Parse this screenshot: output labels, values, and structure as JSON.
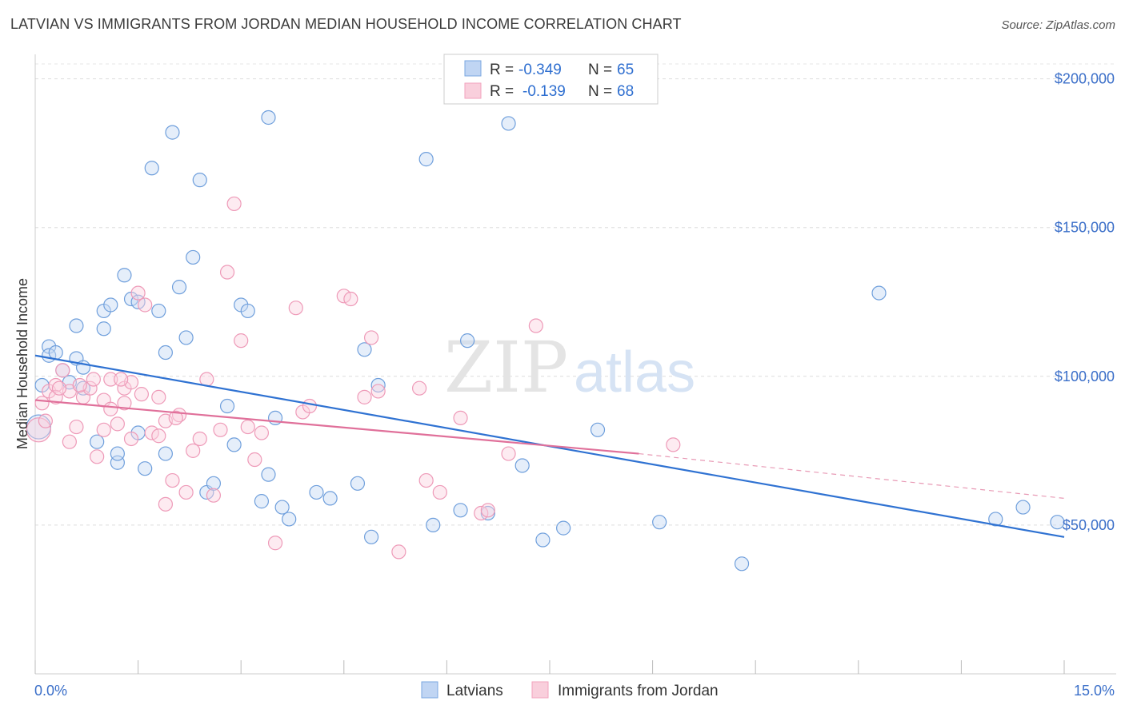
{
  "title": "LATVIAN VS IMMIGRANTS FROM JORDAN MEDIAN HOUSEHOLD INCOME CORRELATION CHART",
  "source": "Source: ZipAtlas.com",
  "colors": {
    "latvians": "#7aa7e0",
    "jordan": "#f2a3be",
    "latvians_line": "#2f72d2",
    "jordan_line": "#e0709a",
    "accent": "#3b6fc9"
  },
  "legend": {
    "rows": [
      {
        "r_label": "R =",
        "r_value": "-0.349",
        "n_label": "N =",
        "n_value": "65"
      },
      {
        "r_label": "R =",
        "r_value": "-0.139",
        "n_label": "N =",
        "n_value": "68"
      }
    ]
  },
  "bottom_legend": [
    "Latvians",
    "Immigrants from Jordan"
  ],
  "watermark": {
    "zip": "ZIP",
    "atlas": "atlas"
  },
  "chart_data": {
    "type": "scatter",
    "title": "LATVIAN VS IMMIGRANTS FROM JORDAN MEDIAN HOUSEHOLD INCOME CORRELATION CHART",
    "xlabel": "",
    "ylabel": "Median Household Income",
    "xlim": [
      0,
      15
    ],
    "ylim": [
      0,
      205000
    ],
    "x_tick_labels": [
      "0.0%",
      "15.0%"
    ],
    "y_ticks": [
      50000,
      100000,
      150000,
      200000
    ],
    "y_tick_labels": [
      "$50,000",
      "$100,000",
      "$150,000",
      "$200,000"
    ],
    "grid": true,
    "legend_placement": "top-center",
    "series": [
      {
        "name": "Latvians",
        "r": -0.349,
        "n": 65,
        "trend": {
          "x": [
            0,
            15
          ],
          "y": [
            107000,
            46000
          ]
        },
        "points": [
          [
            0.1,
            97000
          ],
          [
            0.2,
            110000
          ],
          [
            0.2,
            107000
          ],
          [
            0.3,
            108000
          ],
          [
            0.4,
            102000
          ],
          [
            0.5,
            98000
          ],
          [
            0.6,
            117000
          ],
          [
            0.6,
            106000
          ],
          [
            0.7,
            103000
          ],
          [
            0.7,
            96000
          ],
          [
            0.9,
            78000
          ],
          [
            1.0,
            116000
          ],
          [
            1.0,
            122000
          ],
          [
            1.1,
            124000
          ],
          [
            1.2,
            71000
          ],
          [
            1.2,
            74000
          ],
          [
            1.3,
            134000
          ],
          [
            1.4,
            126000
          ],
          [
            1.5,
            125000
          ],
          [
            1.5,
            81000
          ],
          [
            1.6,
            69000
          ],
          [
            1.7,
            170000
          ],
          [
            1.8,
            122000
          ],
          [
            1.9,
            108000
          ],
          [
            1.9,
            74000
          ],
          [
            2.0,
            182000
          ],
          [
            2.1,
            130000
          ],
          [
            2.2,
            113000
          ],
          [
            2.3,
            140000
          ],
          [
            2.4,
            166000
          ],
          [
            2.5,
            61000
          ],
          [
            2.6,
            64000
          ],
          [
            2.8,
            90000
          ],
          [
            2.9,
            77000
          ],
          [
            3.0,
            124000
          ],
          [
            3.1,
            122000
          ],
          [
            3.3,
            58000
          ],
          [
            3.4,
            67000
          ],
          [
            3.4,
            187000
          ],
          [
            3.5,
            86000
          ],
          [
            3.6,
            56000
          ],
          [
            3.7,
            52000
          ],
          [
            4.1,
            61000
          ],
          [
            4.3,
            59000
          ],
          [
            4.7,
            64000
          ],
          [
            4.8,
            109000
          ],
          [
            4.9,
            46000
          ],
          [
            5.0,
            97000
          ],
          [
            5.7,
            173000
          ],
          [
            5.8,
            50000
          ],
          [
            6.2,
            55000
          ],
          [
            6.3,
            112000
          ],
          [
            6.6,
            54000
          ],
          [
            6.9,
            185000
          ],
          [
            7.1,
            70000
          ],
          [
            7.4,
            45000
          ],
          [
            7.7,
            49000
          ],
          [
            8.2,
            82000
          ],
          [
            9.1,
            51000
          ],
          [
            10.3,
            37000
          ],
          [
            12.3,
            128000
          ],
          [
            14.0,
            52000
          ],
          [
            14.4,
            56000
          ],
          [
            14.9,
            51000
          ],
          [
            0.05,
            83000
          ]
        ]
      },
      {
        "name": "Immigrants from Jordan",
        "r": -0.139,
        "n": 68,
        "trend": {
          "x": [
            0,
            8.8
          ],
          "y": [
            92000,
            74000
          ]
        },
        "trend_dashed": {
          "x": [
            8.8,
            15
          ],
          "y": [
            74000,
            59000
          ]
        },
        "points": [
          [
            0.1,
            91000
          ],
          [
            0.2,
            95000
          ],
          [
            0.3,
            97000
          ],
          [
            0.3,
            93000
          ],
          [
            0.4,
            102000
          ],
          [
            0.5,
            95000
          ],
          [
            0.5,
            78000
          ],
          [
            0.6,
            83000
          ],
          [
            0.7,
            93000
          ],
          [
            0.8,
            96000
          ],
          [
            0.9,
            73000
          ],
          [
            1.0,
            82000
          ],
          [
            1.0,
            92000
          ],
          [
            1.1,
            89000
          ],
          [
            1.1,
            99000
          ],
          [
            1.2,
            84000
          ],
          [
            1.3,
            91000
          ],
          [
            1.3,
            96000
          ],
          [
            1.4,
            98000
          ],
          [
            1.4,
            79000
          ],
          [
            1.5,
            128000
          ],
          [
            1.6,
            124000
          ],
          [
            1.7,
            81000
          ],
          [
            1.8,
            80000
          ],
          [
            1.8,
            93000
          ],
          [
            1.9,
            85000
          ],
          [
            1.9,
            57000
          ],
          [
            2.0,
            65000
          ],
          [
            2.1,
            87000
          ],
          [
            2.2,
            61000
          ],
          [
            2.3,
            75000
          ],
          [
            2.4,
            79000
          ],
          [
            2.5,
            99000
          ],
          [
            2.6,
            60000
          ],
          [
            2.7,
            82000
          ],
          [
            2.8,
            135000
          ],
          [
            2.9,
            158000
          ],
          [
            3.0,
            112000
          ],
          [
            3.1,
            83000
          ],
          [
            3.2,
            72000
          ],
          [
            3.3,
            81000
          ],
          [
            3.5,
            44000
          ],
          [
            3.8,
            123000
          ],
          [
            3.9,
            88000
          ],
          [
            4.0,
            90000
          ],
          [
            4.5,
            127000
          ],
          [
            4.6,
            126000
          ],
          [
            4.8,
            93000
          ],
          [
            4.9,
            113000
          ],
          [
            5.0,
            95000
          ],
          [
            5.3,
            41000
          ],
          [
            5.6,
            96000
          ],
          [
            5.7,
            65000
          ],
          [
            5.9,
            61000
          ],
          [
            6.2,
            86000
          ],
          [
            6.5,
            54000
          ],
          [
            6.6,
            55000
          ],
          [
            6.9,
            74000
          ],
          [
            7.3,
            117000
          ],
          [
            9.3,
            77000
          ],
          [
            0.05,
            82000
          ],
          [
            0.15,
            85000
          ],
          [
            0.35,
            96000
          ],
          [
            0.65,
            97000
          ],
          [
            0.85,
            99000
          ],
          [
            1.25,
            99000
          ],
          [
            1.55,
            94000
          ],
          [
            2.05,
            86000
          ]
        ]
      }
    ]
  }
}
